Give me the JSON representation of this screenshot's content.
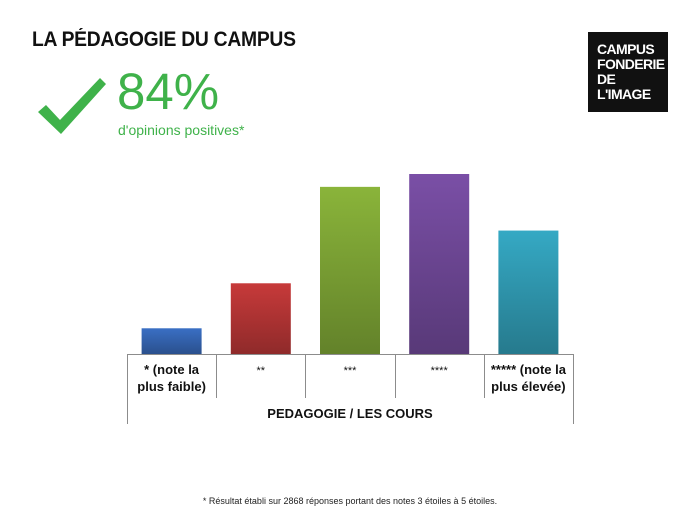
{
  "header": {
    "title": "LA PÉDAGOGIE DU CAMPUS",
    "logo_lines": [
      "CAMPUS",
      "FONDERIE",
      "DE",
      "L'IMAGE"
    ]
  },
  "highlight": {
    "icon": "checkmark-icon",
    "value": "84%",
    "caption": "d'opinions positives*",
    "color": "#3fb24a"
  },
  "chart_data": {
    "type": "bar",
    "categories": [
      [
        "* (note la",
        "plus faible)"
      ],
      [
        "**"
      ],
      [
        "***"
      ],
      [
        "****"
      ],
      [
        "***** (note la",
        "plus élevée)"
      ]
    ],
    "values": [
      4,
      11,
      26,
      28,
      19.2
    ],
    "colors": [
      "#3a6fc4",
      "#c73a3a",
      "#8ab43a",
      "#7a4fa6",
      "#35a9c4"
    ],
    "xlabel": "PEDAGOGIE / LES COURS",
    "ylim": [
      0,
      30
    ]
  },
  "footnote": "* Résultat établi sur 2868 réponses portant des notes 3 étoiles à 5 étoiles."
}
